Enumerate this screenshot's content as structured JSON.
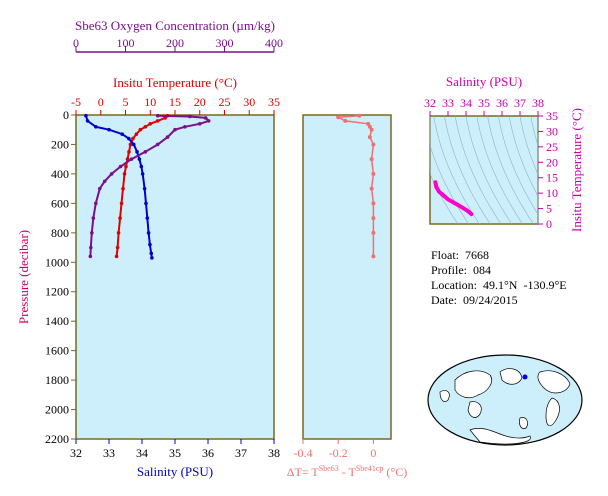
{
  "colors": {
    "panel_bg": "#cdeefb",
    "frame": "#7a6a1a",
    "temperature": "#e00000",
    "salinity": "#0000cc",
    "oxygen": "#7b0f8a",
    "delta_t": "#f07070",
    "ts_axis": "#cc00aa",
    "ts_curve": "#ff00cc"
  },
  "info": {
    "float_label": "Float:",
    "float_value": "7668",
    "profile_label": "Profile:",
    "profile_value": "084",
    "location_label": "Location:",
    "location_value": "49.1°N  -130.9°E",
    "date_label": "Date:",
    "date_value": "09/24/2015"
  },
  "chart_data": [
    {
      "type": "line",
      "panel": "profiles",
      "ylabel": "Pressure (decibar)",
      "ylim": [
        2200,
        0
      ],
      "yticks": [
        0,
        200,
        400,
        600,
        800,
        1000,
        1200,
        1400,
        1600,
        1800,
        2000,
        2200
      ],
      "axes": {
        "oxygen": {
          "label": "Sbe63 Oxygen Concentration (µm/kg)",
          "lim": [
            0,
            400
          ],
          "ticks": [
            0,
            100,
            200,
            300,
            400
          ]
        },
        "temperature": {
          "label": "Insitu Temperature (°C)",
          "lim": [
            -5,
            35
          ],
          "ticks": [
            -5,
            0,
            5,
            10,
            15,
            20,
            25,
            30,
            35
          ]
        },
        "salinity": {
          "label": "Salinity (PSU)",
          "lim": [
            32,
            38
          ],
          "ticks": [
            32,
            33,
            34,
            35,
            36,
            37,
            38
          ]
        }
      },
      "series": [
        {
          "name": "Insitu Temperature",
          "axis": "temperature",
          "x": [
            13.5,
            13.0,
            11.5,
            10.0,
            9.0,
            8.0,
            7.2,
            6.5,
            6.0,
            5.7,
            5.4,
            5.1,
            4.8,
            4.5,
            4.2,
            3.9,
            3.6,
            3.4,
            3.2
          ],
          "y": [
            5,
            20,
            40,
            60,
            80,
            100,
            130,
            160,
            200,
            250,
            300,
            350,
            400,
            500,
            600,
            700,
            800,
            900,
            960
          ]
        },
        {
          "name": "Salinity",
          "axis": "salinity",
          "x": [
            32.3,
            32.35,
            32.6,
            33.0,
            33.4,
            33.6,
            33.75,
            33.85,
            33.92,
            33.98,
            34.02,
            34.08,
            34.12,
            34.16,
            34.2,
            34.24,
            34.28,
            34.3
          ],
          "y": [
            5,
            40,
            80,
            100,
            130,
            160,
            200,
            250,
            300,
            350,
            400,
            500,
            600,
            700,
            800,
            880,
            940,
            970
          ]
        },
        {
          "name": "Sbe63 Oxygen Concentration",
          "axis": "oxygen",
          "x": [
            165,
            230,
            262,
            268,
            250,
            220,
            200,
            185,
            165,
            140,
            112,
            90,
            72,
            58,
            48,
            40,
            35,
            32,
            30,
            29
          ],
          "y": [
            5,
            10,
            20,
            40,
            60,
            80,
            100,
            150,
            200,
            250,
            300,
            350,
            400,
            450,
            500,
            600,
            700,
            800,
            900,
            960
          ]
        }
      ]
    },
    {
      "type": "line",
      "panel": "delta_t",
      "xlabel": "ΔT= T^Sbe63 - T^Sbe41cp (°C)",
      "xlim": [
        -0.4,
        0.1
      ],
      "xticks": [
        -0.4,
        -0.2,
        0.0
      ],
      "ylim": [
        2200,
        0
      ],
      "series": [
        {
          "name": "ΔT",
          "x": [
            -0.08,
            -0.2,
            -0.16,
            -0.03,
            -0.02,
            -0.01,
            -0.02,
            0.0,
            -0.01,
            0.0,
            -0.01,
            0.0,
            0.0,
            0.0,
            0.0
          ],
          "y": [
            5,
            15,
            40,
            60,
            80,
            100,
            150,
            200,
            300,
            400,
            500,
            600,
            700,
            800,
            960
          ]
        }
      ]
    },
    {
      "type": "line",
      "panel": "ts_diagram",
      "xlabel": "Salinity (PSU)",
      "ylabel": "Insitu Temperature (°C)",
      "xlim": [
        32,
        38
      ],
      "ylim": [
        0,
        35
      ],
      "xticks": [
        32,
        33,
        34,
        35,
        36,
        37,
        38
      ],
      "yticks": [
        0,
        5,
        10,
        15,
        20,
        25,
        30,
        35
      ],
      "series": [
        {
          "name": "T-S",
          "x": [
            32.3,
            32.35,
            32.5,
            32.8,
            33.0,
            33.3,
            33.6,
            33.8,
            34.0,
            34.15,
            34.3
          ],
          "y": [
            13.5,
            12.0,
            10.5,
            9.0,
            8.0,
            7.0,
            6.0,
            5.3,
            4.6,
            4.0,
            3.2
          ]
        }
      ]
    }
  ]
}
